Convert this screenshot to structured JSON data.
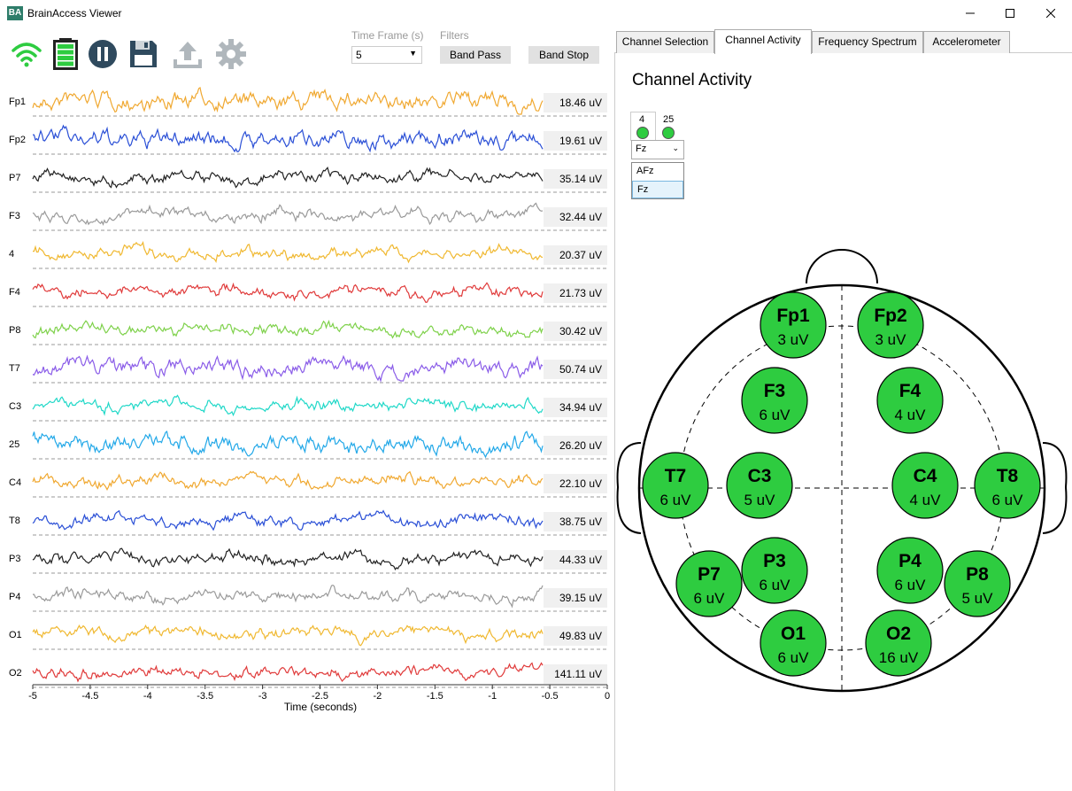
{
  "window": {
    "app_icon_text": "BA",
    "title": "BrainAccess Viewer"
  },
  "toolbar": {
    "icons": [
      "wifi-icon",
      "battery-icon",
      "pause-icon",
      "save-icon",
      "upload-icon",
      "settings-gear-icon"
    ],
    "time_frame_label": "Time Frame (s)",
    "time_frame_value": "5",
    "filters_label": "Filters",
    "band_pass_label": "Band Pass",
    "band_stop_label": "Band Stop"
  },
  "tabs": [
    {
      "label": "Channel Selection",
      "active": false
    },
    {
      "label": "Channel Activity",
      "active": true
    },
    {
      "label": "Frequency Spectrum",
      "active": false
    },
    {
      "label": "Accelerometer",
      "active": false
    }
  ],
  "channel_activity": {
    "title": "Channel Activity",
    "mini_channels": [
      {
        "label": "4"
      },
      {
        "label": "25"
      }
    ],
    "combo_value": "Fz",
    "dropdown_options": [
      "AFz",
      "Fz"
    ],
    "dropdown_selected": "Fz"
  },
  "chart_data": {
    "type": "line",
    "xlabel": "Time (seconds)",
    "xlim": [
      -5,
      0
    ],
    "x_ticks": [
      "-5",
      "-4.5",
      "-4",
      "-3.5",
      "-3",
      "-2.5",
      "-2",
      "-1.5",
      "-1",
      "-0.5",
      "0"
    ],
    "series": [
      {
        "name": "Fp1",
        "amplitude": "18.46 uV",
        "color": "#f0a830"
      },
      {
        "name": "Fp2",
        "amplitude": "19.61 uV",
        "color": "#2a4fd6"
      },
      {
        "name": "P7",
        "amplitude": "35.14 uV",
        "color": "#222222"
      },
      {
        "name": "F3",
        "amplitude": "32.44 uV",
        "color": "#9a9a9a"
      },
      {
        "name": "4",
        "amplitude": "20.37 uV",
        "color": "#f0b830"
      },
      {
        "name": "F4",
        "amplitude": "21.73 uV",
        "color": "#e03a3a"
      },
      {
        "name": "P8",
        "amplitude": "30.42 uV",
        "color": "#7ed14a"
      },
      {
        "name": "T7",
        "amplitude": "50.74 uV",
        "color": "#8a5ce8"
      },
      {
        "name": "C3",
        "amplitude": "34.94 uV",
        "color": "#20d8c8"
      },
      {
        "name": "25",
        "amplitude": "26.20 uV",
        "color": "#22a8e8"
      },
      {
        "name": "C4",
        "amplitude": "22.10 uV",
        "color": "#f0a830"
      },
      {
        "name": "T8",
        "amplitude": "38.75 uV",
        "color": "#2a4fd6"
      },
      {
        "name": "P3",
        "amplitude": "44.33 uV",
        "color": "#222222"
      },
      {
        "name": "P4",
        "amplitude": "39.15 uV",
        "color": "#9a9a9a"
      },
      {
        "name": "O1",
        "amplitude": "49.83 uV",
        "color": "#f0b830"
      },
      {
        "name": "O2",
        "amplitude": "141.11 uV",
        "color": "#e03a3a"
      }
    ]
  },
  "head_map": {
    "fill_color": "#2ecc40",
    "electrodes": [
      {
        "name": "Fp1",
        "value": "3 uV"
      },
      {
        "name": "Fp2",
        "value": "3 uV"
      },
      {
        "name": "F3",
        "value": "6 uV"
      },
      {
        "name": "F4",
        "value": "4 uV"
      },
      {
        "name": "T7",
        "value": "6 uV"
      },
      {
        "name": "C3",
        "value": "5 uV"
      },
      {
        "name": "C4",
        "value": "4 uV"
      },
      {
        "name": "T8",
        "value": "6 uV"
      },
      {
        "name": "P3",
        "value": "6 uV"
      },
      {
        "name": "P4",
        "value": "6 uV"
      },
      {
        "name": "P7",
        "value": "6 uV"
      },
      {
        "name": "P8",
        "value": "5 uV"
      },
      {
        "name": "O1",
        "value": "6 uV"
      },
      {
        "name": "O2",
        "value": "16 uV"
      }
    ]
  }
}
